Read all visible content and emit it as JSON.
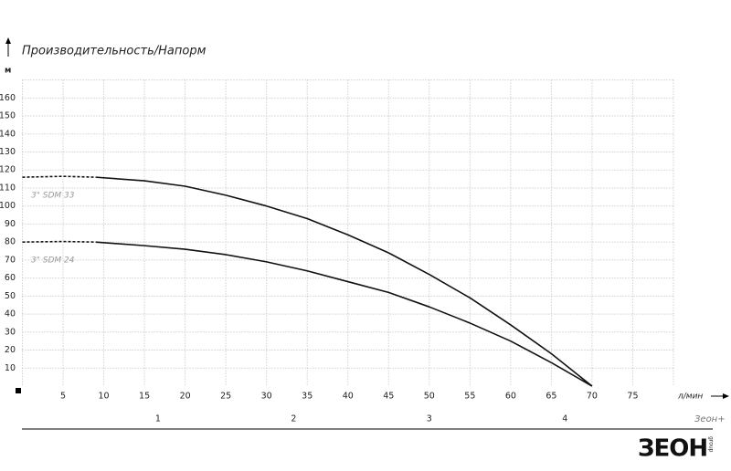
{
  "chart_data": {
    "type": "line",
    "title": "Производительность/Напорм",
    "y_label": "м",
    "x_label": "л/мин",
    "x": [
      0,
      5,
      9,
      15,
      20,
      25,
      30,
      35,
      40,
      45,
      50,
      55,
      60,
      65,
      70
    ],
    "series": [
      {
        "name": "3\" SDM 33",
        "color": "#111111",
        "values": [
          null,
          null,
          116,
          114,
          111,
          106,
          100,
          93,
          84,
          74,
          62,
          49,
          34,
          18,
          0
        ],
        "extrapolated_values": [
          116,
          116.5,
          116,
          null,
          null,
          null,
          null,
          null,
          null,
          null,
          null,
          null,
          null,
          null,
          null
        ]
      },
      {
        "name": "3\" SDM 24",
        "color": "#111111",
        "values": [
          null,
          null,
          80,
          78,
          76,
          73,
          69,
          64,
          58,
          52,
          44,
          35,
          25,
          13,
          0
        ],
        "extrapolated_values": [
          80,
          80.3,
          80,
          null,
          null,
          null,
          null,
          null,
          null,
          null,
          null,
          null,
          null,
          null,
          null
        ]
      }
    ],
    "xlim": [
      0,
      80
    ],
    "xticks": [
      5,
      10,
      15,
      20,
      25,
      30,
      35,
      40,
      45,
      50,
      55,
      60,
      65,
      70,
      75
    ],
    "ylim": [
      0,
      170
    ],
    "yticks": [
      10,
      20,
      30,
      40,
      50,
      60,
      70,
      80,
      90,
      100,
      110,
      120,
      130,
      140,
      150,
      160
    ],
    "x2_label": "Зеон+",
    "x2lim": [
      0,
      4.8
    ],
    "x2ticks": [
      1,
      2,
      3,
      4
    ],
    "grid": true
  },
  "logo": {
    "text": "ЗЕОН",
    "subtext": "group"
  }
}
